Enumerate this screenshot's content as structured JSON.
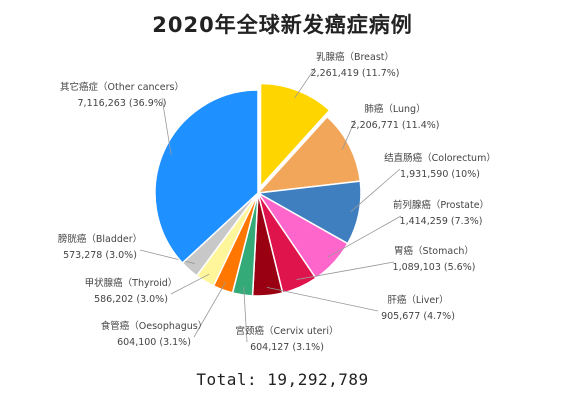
{
  "chart_data": {
    "type": "pie",
    "title": "2020年全球新发癌症病例",
    "total_label": "Total: 19,292,789",
    "slices": [
      {
        "name": "乳腺癌（Breast）",
        "value": 2261419,
        "pct": "11.7%",
        "value_label": "2,261,419 (11.7%)",
        "color": "#FFD500",
        "exploded": true
      },
      {
        "name": "肺癌（Lung）",
        "value": 2206771,
        "pct": "11.4%",
        "value_label": "2,206,771 (11.4%)",
        "color": "#F2A65A"
      },
      {
        "name": "结直肠癌（Colorectum）",
        "value": 1931590,
        "pct": "10%",
        "value_label": "1,931,590 (10%)",
        "color": "#3F7FBF"
      },
      {
        "name": "前列腺癌（Prostate）",
        "value": 1414259,
        "pct": "7.3%",
        "value_label": "1,414,259 (7.3%)",
        "color": "#FF66CC"
      },
      {
        "name": "胃癌（Stomach）",
        "value": 1089103,
        "pct": "5.6%",
        "value_label": "1,089,103 (5.6%)",
        "color": "#E0144C"
      },
      {
        "name": "肝癌（Liver）",
        "value": 905677,
        "pct": "4.7%",
        "value_label": "905,677 (4.7%)",
        "color": "#990011"
      },
      {
        "name": "宫颈癌（Cervix uteri）",
        "value": 604127,
        "pct": "3.1%",
        "value_label": "604,127 (3.1%)",
        "color": "#33AA77"
      },
      {
        "name": "食管癌（Oesophagus）",
        "value": 604100,
        "pct": "3.1%",
        "value_label": "604,100 (3.1%)",
        "color": "#FF7700"
      },
      {
        "name": "甲状腺癌（Thyroid）",
        "value": 586202,
        "pct": "3.0%",
        "value_label": "586,202 (3.0%)",
        "color": "#FFF59A"
      },
      {
        "name": "膀胱癌（Bladder）",
        "value": 573278,
        "pct": "3.0%",
        "value_label": "573,278 (3.0%)",
        "color": "#C8C8C8"
      },
      {
        "name": "其它癌症（Other cancers）",
        "value": 7116263,
        "pct": "36.9%",
        "value_label": "7,116,263 (36.9%)",
        "color": "#1E90FF"
      }
    ]
  }
}
